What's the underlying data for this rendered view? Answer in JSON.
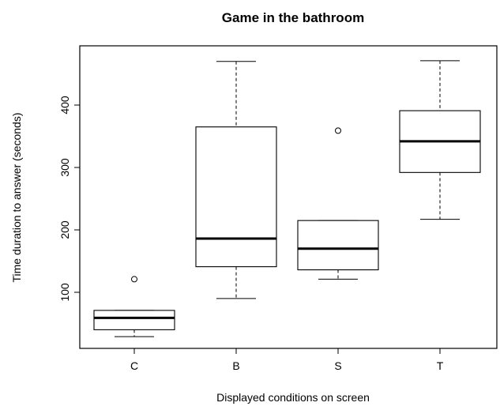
{
  "chart_data": {
    "type": "boxplot",
    "title": "Game in the bathroom",
    "xlabel": "Displayed conditions on screen",
    "ylabel": "Time duration to answer (seconds)",
    "categories": [
      "C",
      "B",
      "S",
      "T"
    ],
    "ylim": [
      0,
      500
    ],
    "yticks": [
      100,
      200,
      300,
      400
    ],
    "grid": false,
    "boxes": [
      {
        "category": "C",
        "min": 29,
        "q1": 40,
        "median": 59,
        "q3": 71,
        "max": 71,
        "outliers": [
          121
        ]
      },
      {
        "category": "B",
        "min": 90,
        "q1": 141,
        "median": 186,
        "q3": 365,
        "max": 470,
        "outliers": []
      },
      {
        "category": "S",
        "min": 121,
        "q1": 136,
        "median": 170,
        "q3": 215,
        "max": 215,
        "outliers": [
          359
        ]
      },
      {
        "category": "T",
        "min": 217,
        "q1": 292,
        "median": 342,
        "q3": 391,
        "max": 471,
        "outliers": []
      }
    ]
  }
}
